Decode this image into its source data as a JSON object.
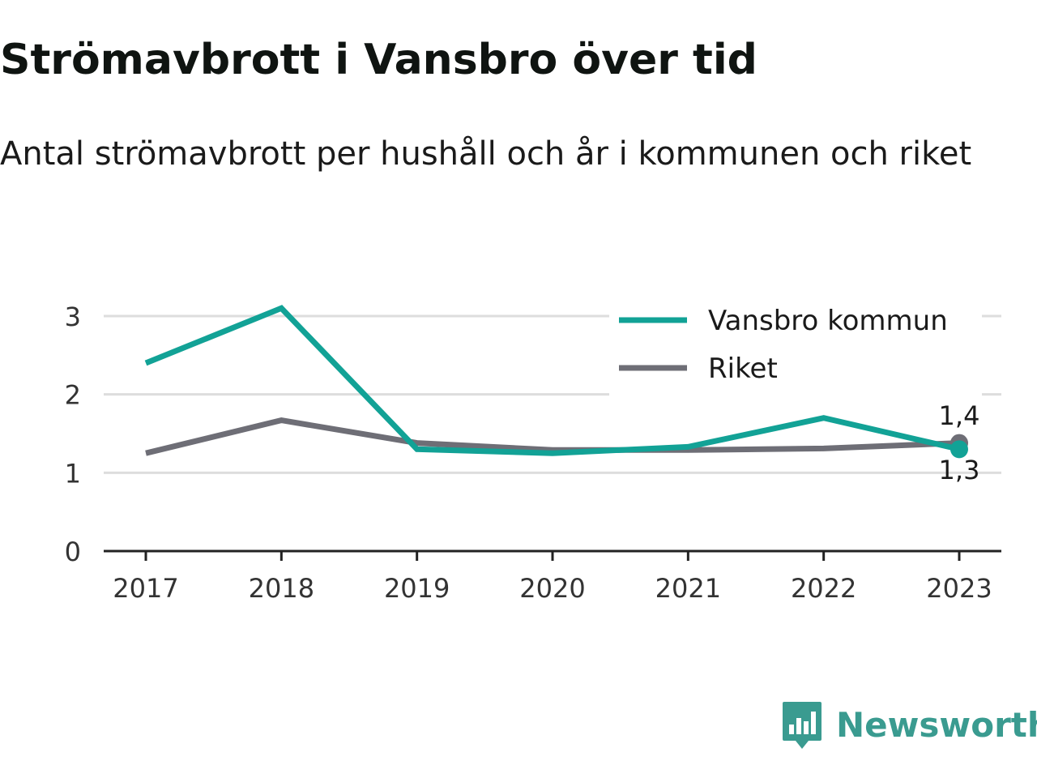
{
  "title": "Strömavbrott i Vansbro över tid",
  "subtitle": "Antal strömavbrott per hushåll och år i kommunen och riket",
  "brand": {
    "name": "Newsworthy",
    "icon": "newsworthy-logo-icon",
    "color": "#3a9b90"
  },
  "colors": {
    "vansbro": "#12a296",
    "riket": "#6e6e76",
    "grid": "#dddddd",
    "axis": "#222222"
  },
  "chart_data": {
    "type": "line",
    "title": "",
    "xlabel": "",
    "ylabel": "",
    "x": [
      "2017",
      "2018",
      "2019",
      "2020",
      "2021",
      "2022",
      "2023"
    ],
    "ylim": [
      0,
      3
    ],
    "yticks": [
      "0",
      "1",
      "2",
      "3"
    ],
    "grid": "horizontal",
    "legend_position": "top-right",
    "series": [
      {
        "name": "Vansbro kommun",
        "values": [
          2.4,
          3.1,
          1.3,
          1.25,
          1.33,
          1.7,
          1.3
        ],
        "color": "#12a296",
        "end_label": "1,3"
      },
      {
        "name": "Riket",
        "values": [
          1.25,
          1.67,
          1.38,
          1.29,
          1.29,
          1.31,
          1.38
        ],
        "color": "#6e6e76",
        "end_label": "1,4"
      }
    ]
  }
}
